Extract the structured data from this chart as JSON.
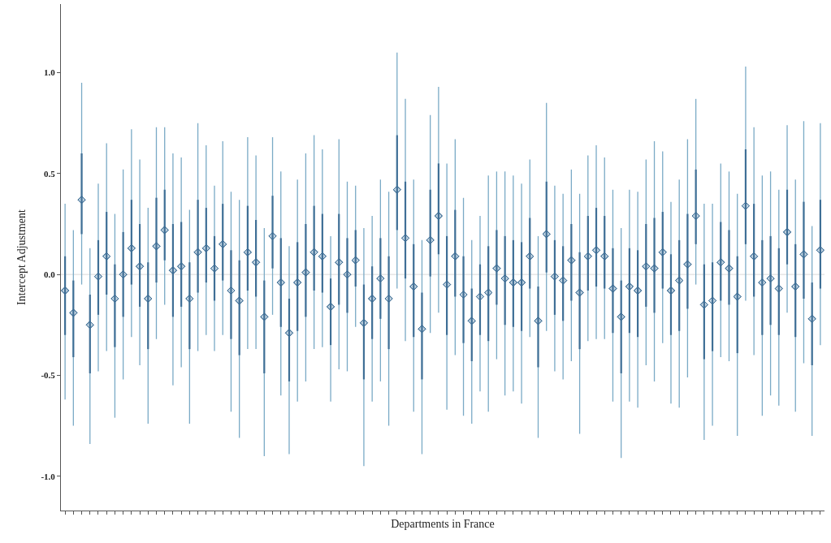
{
  "chart_data": {
    "type": "scatter",
    "xlabel": "Departments in France",
    "ylabel": "Intercept Adjustment",
    "categories": [
      null,
      null,
      null,
      null,
      null,
      null,
      null,
      null,
      null,
      null,
      null,
      null,
      null,
      null,
      null,
      null,
      null,
      null,
      null,
      null,
      null,
      null,
      null,
      null,
      null,
      null,
      null,
      null,
      null,
      null,
      null,
      null,
      null,
      null,
      null,
      null,
      null,
      null,
      null,
      null,
      null,
      null,
      null,
      null,
      null,
      null,
      null,
      null,
      null,
      null,
      null,
      null,
      null,
      null,
      null,
      null,
      null,
      null,
      null,
      null,
      null,
      null,
      null,
      null,
      null,
      null,
      null,
      null,
      null,
      null,
      null,
      null,
      null,
      null,
      null,
      null,
      null,
      null,
      null,
      null,
      null,
      null,
      null,
      null,
      null,
      null,
      null,
      null,
      null,
      null,
      null,
      null
    ],
    "ylim": [
      -1.17,
      1.34
    ],
    "yticks": [
      {
        "value": -1,
        "label": "-1.0"
      },
      {
        "value": -0.5,
        "label": "-0.5"
      },
      {
        "value": 0,
        "label": "0.0"
      },
      {
        "value": 0.5,
        "label": "0.5"
      },
      {
        "value": 1,
        "label": "1.0"
      }
    ],
    "grid": false,
    "ref_lines": [
      {
        "axis": "y",
        "value": 0,
        "color": "#d9d9d9"
      }
    ],
    "series": [
      {
        "color": "#7aaac6",
        "marker": "diamond",
        "values": [
          -0.08,
          -0.19,
          0.37,
          -0.25,
          -0.01,
          0.09,
          -0.12,
          0.0,
          0.13,
          0.04,
          -0.12,
          0.14,
          0.22,
          0.02,
          0.04,
          -0.12,
          0.11,
          0.13,
          0.03,
          0.15,
          -0.08,
          -0.13,
          0.11,
          0.06,
          -0.21,
          0.19,
          -0.04,
          -0.29,
          -0.04,
          0.01,
          0.11,
          0.09,
          -0.16,
          0.06,
          0.0,
          0.07,
          -0.24,
          -0.12,
          -0.02,
          -0.12,
          0.42,
          0.18,
          -0.06,
          -0.27,
          0.17,
          0.29,
          -0.05,
          0.09,
          -0.1,
          -0.23,
          -0.11,
          -0.09,
          0.03,
          -0.02,
          -0.04,
          -0.04,
          0.09,
          -0.23,
          0.2,
          -0.01,
          -0.03,
          0.07,
          -0.09,
          0.09,
          0.12,
          0.09,
          -0.07,
          -0.21,
          -0.06,
          -0.08,
          0.04,
          0.03,
          0.11,
          -0.08,
          -0.03,
          0.05,
          0.29,
          -0.15,
          -0.13,
          0.06,
          0.03,
          -0.11,
          0.34,
          0.09,
          -0.04,
          -0.02,
          -0.07,
          0.21,
          -0.06,
          0.1,
          -0.22,
          0.12
        ],
        "errors": [
          [
            -0.62,
            0.35
          ],
          [
            -0.75,
            0.22
          ],
          [
            -0.05,
            0.95
          ],
          [
            -0.84,
            0.13
          ],
          [
            -0.48,
            0.45
          ],
          [
            -0.38,
            0.65
          ],
          [
            -0.71,
            0.3
          ],
          [
            -0.52,
            0.52
          ],
          [
            -0.31,
            0.72
          ],
          [
            -0.45,
            0.57
          ],
          [
            -0.74,
            0.33
          ],
          [
            -0.32,
            0.73
          ],
          [
            -0.15,
            0.73
          ],
          [
            -0.55,
            0.6
          ],
          [
            -0.46,
            0.58
          ],
          [
            -0.74,
            0.32
          ],
          [
            -0.38,
            0.75
          ],
          [
            -0.3,
            0.64
          ],
          [
            -0.38,
            0.44
          ],
          [
            -0.3,
            0.66
          ],
          [
            -0.68,
            0.41
          ],
          [
            -0.81,
            0.37
          ],
          [
            -0.37,
            0.68
          ],
          [
            -0.37,
            0.59
          ],
          [
            -0.9,
            0.23
          ],
          [
            -0.2,
            0.68
          ],
          [
            -0.6,
            0.51
          ],
          [
            -0.89,
            0.14
          ],
          [
            -0.63,
            0.47
          ],
          [
            -0.53,
            0.6
          ],
          [
            -0.37,
            0.69
          ],
          [
            -0.36,
            0.62
          ],
          [
            -0.63,
            0.19
          ],
          [
            -0.47,
            0.67
          ],
          [
            -0.48,
            0.46
          ],
          [
            -0.26,
            0.44
          ],
          [
            -0.95,
            0.23
          ],
          [
            -0.63,
            0.29
          ],
          [
            -0.53,
            0.47
          ],
          [
            -0.75,
            0.41
          ],
          [
            -0.07,
            1.1
          ],
          [
            -0.33,
            0.87
          ],
          [
            -0.68,
            0.47
          ],
          [
            -0.89,
            0.17
          ],
          [
            -0.29,
            0.79
          ],
          [
            -0.19,
            0.93
          ],
          [
            -0.67,
            0.55
          ],
          [
            -0.4,
            0.67
          ],
          [
            -0.7,
            0.38
          ],
          [
            -0.74,
            0.17
          ],
          [
            -0.58,
            0.29
          ],
          [
            -0.68,
            0.49
          ],
          [
            -0.42,
            0.51
          ],
          [
            -0.6,
            0.51
          ],
          [
            -0.58,
            0.49
          ],
          [
            -0.64,
            0.45
          ],
          [
            -0.31,
            0.57
          ],
          [
            -0.81,
            0.19
          ],
          [
            -0.28,
            0.85
          ],
          [
            -0.48,
            0.44
          ],
          [
            -0.52,
            0.4
          ],
          [
            -0.43,
            0.52
          ],
          [
            -0.79,
            0.4
          ],
          [
            -0.33,
            0.59
          ],
          [
            -0.32,
            0.64
          ],
          [
            -0.32,
            0.58
          ],
          [
            -0.63,
            0.42
          ],
          [
            -0.91,
            0.23
          ],
          [
            -0.63,
            0.42
          ],
          [
            -0.66,
            0.41
          ],
          [
            -0.45,
            0.57
          ],
          [
            -0.53,
            0.66
          ],
          [
            -0.34,
            0.61
          ],
          [
            -0.64,
            0.36
          ],
          [
            -0.66,
            0.47
          ],
          [
            -0.51,
            0.67
          ],
          [
            -0.05,
            0.87
          ],
          [
            -0.82,
            0.35
          ],
          [
            -0.75,
            0.35
          ],
          [
            -0.41,
            0.55
          ],
          [
            -0.43,
            0.51
          ],
          [
            -0.8,
            0.4
          ],
          [
            -0.13,
            1.03
          ],
          [
            -0.4,
            0.73
          ],
          [
            -0.7,
            0.49
          ],
          [
            -0.6,
            0.51
          ],
          [
            -0.65,
            0.42
          ],
          [
            -0.19,
            0.74
          ],
          [
            -0.68,
            0.47
          ],
          [
            -0.44,
            0.76
          ],
          [
            -0.8,
            0.24
          ],
          [
            -0.35,
            0.75
          ]
        ]
      },
      {
        "color": "#3f6f96",
        "marker": "diamond",
        "values": [
          -0.08,
          -0.19,
          0.37,
          -0.25,
          -0.01,
          0.09,
          -0.12,
          0.0,
          0.13,
          0.04,
          -0.12,
          0.14,
          0.22,
          0.02,
          0.04,
          -0.12,
          0.11,
          0.13,
          0.03,
          0.15,
          -0.08,
          -0.13,
          0.11,
          0.06,
          -0.21,
          0.19,
          -0.04,
          -0.29,
          -0.04,
          0.01,
          0.11,
          0.09,
          -0.16,
          0.06,
          0.0,
          0.07,
          -0.24,
          -0.12,
          -0.02,
          -0.12,
          0.42,
          0.18,
          -0.06,
          -0.27,
          0.17,
          0.29,
          -0.05,
          0.09,
          -0.1,
          -0.23,
          -0.11,
          -0.09,
          0.03,
          -0.02,
          -0.04,
          -0.04,
          0.09,
          -0.23,
          0.2,
          -0.01,
          -0.03,
          0.07,
          -0.09,
          0.09,
          0.12,
          0.09,
          -0.07,
          -0.21,
          -0.06,
          -0.08,
          0.04,
          0.03,
          0.11,
          -0.08,
          -0.03,
          0.05,
          0.29,
          -0.15,
          -0.13,
          0.06,
          0.03,
          -0.11,
          0.34,
          0.09,
          -0.04,
          -0.02,
          -0.07,
          0.21,
          -0.06,
          0.1,
          -0.22,
          0.12
        ],
        "errors": [
          [
            -0.3,
            0.09
          ],
          [
            -0.41,
            -0.03
          ],
          [
            0.2,
            0.6
          ],
          [
            -0.49,
            -0.1
          ],
          [
            -0.2,
            0.17
          ],
          [
            -0.1,
            0.31
          ],
          [
            -0.36,
            0.05
          ],
          [
            -0.21,
            0.21
          ],
          [
            -0.05,
            0.37
          ],
          [
            -0.16,
            0.25
          ],
          [
            -0.37,
            0.06
          ],
          [
            -0.04,
            0.38
          ],
          [
            0.07,
            0.42
          ],
          [
            -0.21,
            0.25
          ],
          [
            -0.16,
            0.26
          ],
          [
            -0.37,
            0.06
          ],
          [
            -0.09,
            0.37
          ],
          [
            -0.04,
            0.33
          ],
          [
            -0.13,
            0.19
          ],
          [
            -0.03,
            0.35
          ],
          [
            -0.32,
            0.12
          ],
          [
            -0.4,
            0.07
          ],
          [
            -0.08,
            0.34
          ],
          [
            -0.11,
            0.27
          ],
          [
            -0.49,
            -0.03
          ],
          [
            0.03,
            0.39
          ],
          [
            -0.26,
            0.18
          ],
          [
            -0.53,
            -0.12
          ],
          [
            -0.28,
            0.16
          ],
          [
            -0.21,
            0.25
          ],
          [
            -0.08,
            0.34
          ],
          [
            -0.09,
            0.3
          ],
          [
            -0.35,
            -0.02
          ],
          [
            -0.15,
            0.3
          ],
          [
            -0.19,
            0.18
          ],
          [
            -0.06,
            0.22
          ],
          [
            -0.52,
            -0.05
          ],
          [
            -0.32,
            0.04
          ],
          [
            -0.22,
            0.18
          ],
          [
            -0.37,
            0.09
          ],
          [
            0.22,
            0.69
          ],
          [
            -0.02,
            0.46
          ],
          [
            -0.31,
            0.15
          ],
          [
            -0.52,
            -0.09
          ],
          [
            -0.01,
            0.42
          ],
          [
            0.1,
            0.55
          ],
          [
            -0.3,
            0.19
          ],
          [
            -0.11,
            0.32
          ],
          [
            -0.34,
            0.09
          ],
          [
            -0.43,
            -0.07
          ],
          [
            -0.3,
            0.05
          ],
          [
            -0.33,
            0.14
          ],
          [
            -0.15,
            0.22
          ],
          [
            -0.25,
            0.19
          ],
          [
            -0.26,
            0.17
          ],
          [
            -0.28,
            0.16
          ],
          [
            -0.07,
            0.28
          ],
          [
            -0.46,
            -0.06
          ],
          [
            0.01,
            0.46
          ],
          [
            -0.2,
            0.17
          ],
          [
            -0.23,
            0.14
          ],
          [
            -0.13,
            0.25
          ],
          [
            -0.37,
            0.11
          ],
          [
            -0.08,
            0.29
          ],
          [
            -0.06,
            0.33
          ],
          [
            -0.07,
            0.29
          ],
          [
            -0.29,
            0.13
          ],
          [
            -0.49,
            -0.03
          ],
          [
            -0.29,
            0.13
          ],
          [
            -0.31,
            0.12
          ],
          [
            -0.16,
            0.25
          ],
          [
            -0.19,
            0.28
          ],
          [
            -0.07,
            0.31
          ],
          [
            -0.3,
            0.1
          ],
          [
            -0.28,
            0.17
          ],
          [
            -0.17,
            0.3
          ],
          [
            0.15,
            0.52
          ],
          [
            -0.42,
            0.05
          ],
          [
            -0.38,
            0.06
          ],
          [
            -0.13,
            0.26
          ],
          [
            -0.15,
            0.22
          ],
          [
            -0.39,
            0.09
          ],
          [
            0.15,
            0.62
          ],
          [
            -0.11,
            0.35
          ],
          [
            -0.3,
            0.17
          ],
          [
            -0.25,
            0.19
          ],
          [
            -0.3,
            0.13
          ],
          [
            0.05,
            0.42
          ],
          [
            -0.31,
            0.15
          ],
          [
            -0.12,
            0.36
          ],
          [
            -0.45,
            -0.04
          ],
          [
            -0.07,
            0.37
          ]
        ]
      }
    ]
  }
}
